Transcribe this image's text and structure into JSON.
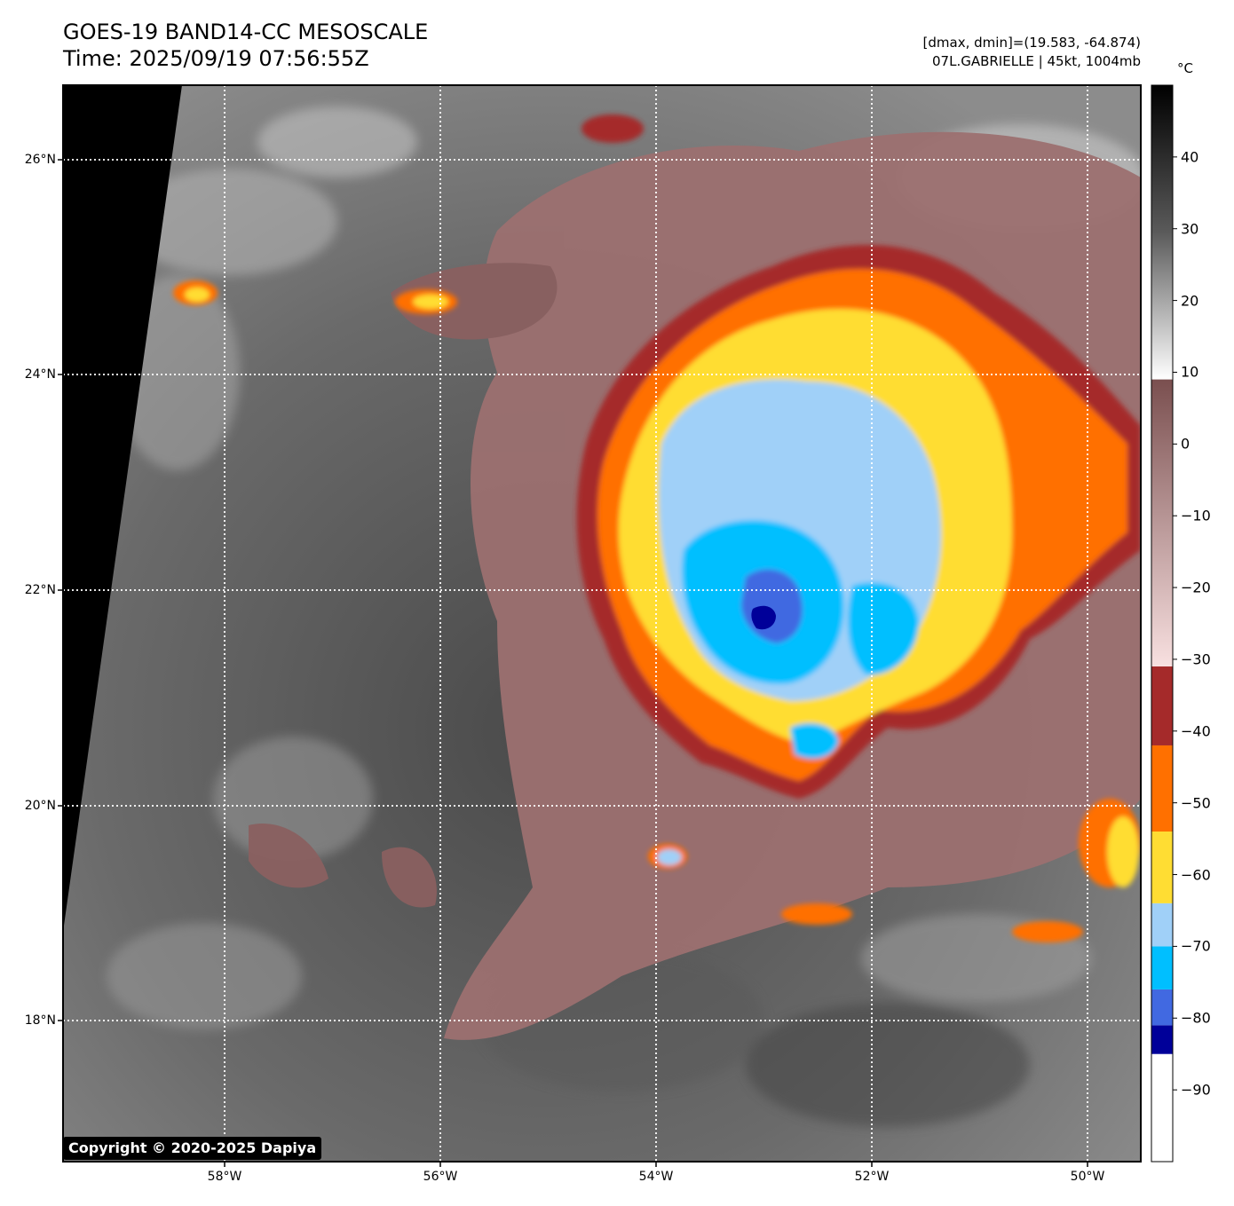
{
  "header": {
    "title_line1": "GOES-19 BAND14-CC MESOSCALE",
    "title_line2": "Time: 2025/09/19 07:56:55Z",
    "dmax_dmin": "[dmax, dmin]=(19.583, -64.874)",
    "storm_info": "07L.GABRIELLE | 45kt, 1004mb"
  },
  "map": {
    "lat_ticks": [
      "26°N",
      "24°N",
      "22°N",
      "20°N",
      "18°N"
    ],
    "lon_ticks": [
      "58°W",
      "56°W",
      "54°W",
      "52°W",
      "50°W"
    ],
    "copyright": "Copyright © 2020-2025 Dapiya"
  },
  "colorbar": {
    "unit": "°C",
    "labels": [
      "40",
      "30",
      "20",
      "10",
      "0",
      "−10",
      "−20",
      "−30",
      "−40",
      "−50",
      "−60",
      "−70",
      "−80",
      "−90"
    ],
    "bands": [
      {
        "from": -100,
        "to": -85,
        "color": "#ffffff"
      },
      {
        "from": -85,
        "to": -81,
        "color": "#000099"
      },
      {
        "from": -81,
        "to": -76,
        "color": "#4169e1"
      },
      {
        "from": -76,
        "to": -70,
        "color": "#00bfff"
      },
      {
        "from": -70,
        "to": -64,
        "color": "#a0d0f8"
      },
      {
        "from": -64,
        "to": -54,
        "color": "#ffdd33"
      },
      {
        "from": -54,
        "to": -42,
        "color": "#ff7000"
      },
      {
        "from": -42,
        "to": -31,
        "color": "#a52a2a"
      }
    ],
    "gradients": [
      {
        "from": -31,
        "to": 9,
        "color_low": "#f8e0e0",
        "color_high": "#7a4f4f"
      },
      {
        "from": 9,
        "to": 50,
        "color_low": "#ffffff",
        "color_high": "#000000"
      }
    ]
  }
}
